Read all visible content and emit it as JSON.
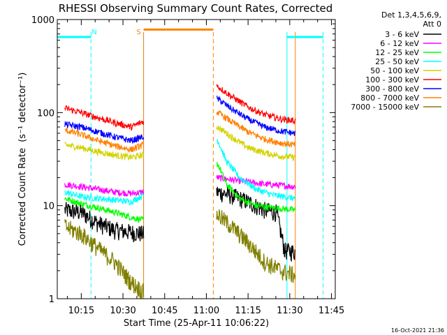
{
  "chart_data": {
    "type": "line",
    "title": "RHESSI Observing Summary Count Rates, Corrected",
    "xlabel": "Start Time (25-Apr-11 10:06:22)",
    "ylabel": "Corrected Count Rate",
    "ylabel_units": "(s⁻¹ detector⁻¹)",
    "xscale": "time",
    "yscale": "log",
    "x_range": [
      "10:06:22",
      "11:46:22"
    ],
    "ylim": [
      1,
      1000
    ],
    "x_ticks": [
      "10:15",
      "10:30",
      "10:45",
      "11:00",
      "11:15",
      "11:30",
      "11:45"
    ],
    "y_ticks": [
      {
        "value": 1,
        "label": "1"
      },
      {
        "value": 10,
        "label": "10"
      },
      {
        "value": 100,
        "label": "100"
      },
      {
        "value": 1000,
        "label": "1000"
      }
    ],
    "grid": false,
    "legend": {
      "position": "right",
      "header": [
        "Det 1,3,4,5,6,9,",
        "Att 0"
      ]
    },
    "timestamp": "16-Oct-2021 21:36",
    "segments": [
      {
        "start": "10:09:05",
        "end": "10:37:25"
      },
      {
        "start": "11:03:40",
        "end": "11:32:00"
      }
    ],
    "series": [
      {
        "name": "3 - 6 keV",
        "color": "#000000",
        "seg1": [
          [
            10.15,
            9.0
          ],
          [
            10.25,
            8.5
          ],
          [
            10.35,
            6.5
          ],
          [
            10.45,
            5.5
          ],
          [
            10.55,
            5.2
          ],
          [
            10.62,
            5.0
          ]
        ],
        "seg2": [
          [
            11.07,
            14.0
          ],
          [
            11.15,
            13.0
          ],
          [
            11.25,
            11.0
          ],
          [
            11.35,
            9.0
          ],
          [
            11.42,
            8.5
          ],
          [
            11.47,
            3.3
          ],
          [
            11.53,
            3.2
          ]
        ]
      },
      {
        "name": "6 - 12 keV",
        "color": "#ff00ff",
        "seg1": [
          [
            10.15,
            17.0
          ],
          [
            10.25,
            16.0
          ],
          [
            10.35,
            15.0
          ],
          [
            10.45,
            14.0
          ],
          [
            10.55,
            13.5
          ],
          [
            10.62,
            14.0
          ]
        ],
        "seg2": [
          [
            11.07,
            20.0
          ],
          [
            11.15,
            19.0
          ],
          [
            11.25,
            18.0
          ],
          [
            11.35,
            17.0
          ],
          [
            11.45,
            16.5
          ],
          [
            11.53,
            16.0
          ]
        ]
      },
      {
        "name": "12 - 25 keV",
        "color": "#00ff00",
        "seg1": [
          [
            10.15,
            12.0
          ],
          [
            10.25,
            10.5
          ],
          [
            10.35,
            9.5
          ],
          [
            10.45,
            8.5
          ],
          [
            10.55,
            7.5
          ],
          [
            10.62,
            7.0
          ]
        ],
        "seg2": [
          [
            11.07,
            28.0
          ],
          [
            11.12,
            17.0
          ],
          [
            11.2,
            12.0
          ],
          [
            11.3,
            10.0
          ],
          [
            11.4,
            9.5
          ],
          [
            11.53,
            9.0
          ]
        ]
      },
      {
        "name": "25 - 50 keV",
        "color": "#00ffff",
        "seg1": [
          [
            10.15,
            14.0
          ],
          [
            10.25,
            12.5
          ],
          [
            10.35,
            12.0
          ],
          [
            10.45,
            11.5
          ],
          [
            10.55,
            11.0
          ],
          [
            10.62,
            13.0
          ]
        ],
        "seg2": [
          [
            11.07,
            50.0
          ],
          [
            11.12,
            30.0
          ],
          [
            11.2,
            20.0
          ],
          [
            11.3,
            15.0
          ],
          [
            11.4,
            13.0
          ],
          [
            11.53,
            12.0
          ]
        ]
      },
      {
        "name": "50 - 100 keV",
        "color": "#d2d200",
        "seg1": [
          [
            10.15,
            45.0
          ],
          [
            10.25,
            42.0
          ],
          [
            10.35,
            38.0
          ],
          [
            10.45,
            35.0
          ],
          [
            10.55,
            33.0
          ],
          [
            10.62,
            35.0
          ]
        ],
        "seg2": [
          [
            11.07,
            70.0
          ],
          [
            11.15,
            55.0
          ],
          [
            11.25,
            42.0
          ],
          [
            11.35,
            37.0
          ],
          [
            11.45,
            34.0
          ],
          [
            11.53,
            33.0
          ]
        ]
      },
      {
        "name": "100 - 300 keV",
        "color": "#ff0000",
        "seg1": [
          [
            10.15,
            112.0
          ],
          [
            10.25,
            100.0
          ],
          [
            10.35,
            88.0
          ],
          [
            10.45,
            78.0
          ],
          [
            10.55,
            70.0
          ],
          [
            10.62,
            80.0
          ]
        ],
        "seg2": [
          [
            11.07,
            190.0
          ],
          [
            11.15,
            150.0
          ],
          [
            11.25,
            115.0
          ],
          [
            11.35,
            95.0
          ],
          [
            11.45,
            85.0
          ],
          [
            11.53,
            82.0
          ]
        ]
      },
      {
        "name": "300 - 800 keV",
        "color": "#0000ff",
        "seg1": [
          [
            10.15,
            75.0
          ],
          [
            10.25,
            70.0
          ],
          [
            10.35,
            62.0
          ],
          [
            10.45,
            55.0
          ],
          [
            10.55,
            50.0
          ],
          [
            10.62,
            55.0
          ]
        ],
        "seg2": [
          [
            11.07,
            140.0
          ],
          [
            11.15,
            110.0
          ],
          [
            11.25,
            85.0
          ],
          [
            11.35,
            70.0
          ],
          [
            11.45,
            63.0
          ],
          [
            11.53,
            60.0
          ]
        ]
      },
      {
        "name": "800 - 7000 keV",
        "color": "#ff8000",
        "seg1": [
          [
            10.15,
            65.0
          ],
          [
            10.25,
            58.0
          ],
          [
            10.35,
            50.0
          ],
          [
            10.45,
            44.0
          ],
          [
            10.55,
            40.0
          ],
          [
            10.62,
            45.0
          ]
        ],
        "seg2": [
          [
            11.07,
            100.0
          ],
          [
            11.15,
            80.0
          ],
          [
            11.25,
            62.0
          ],
          [
            11.35,
            52.0
          ],
          [
            11.45,
            47.0
          ],
          [
            11.53,
            45.0
          ]
        ]
      },
      {
        "name": "7000 - 15000 keV",
        "color": "#808000",
        "seg1": [
          [
            10.15,
            6.0
          ],
          [
            10.25,
            5.0
          ],
          [
            10.35,
            3.5
          ],
          [
            10.45,
            2.5
          ],
          [
            10.55,
            1.5
          ],
          [
            10.62,
            1.2
          ]
        ],
        "seg2": [
          [
            11.07,
            8.0
          ],
          [
            11.15,
            6.0
          ],
          [
            11.25,
            4.0
          ],
          [
            11.35,
            2.5
          ],
          [
            11.45,
            2.0
          ],
          [
            11.53,
            1.8
          ]
        ]
      }
    ],
    "annotations": [
      {
        "label": "N",
        "color": "#00ffff",
        "x": "10:19:40"
      },
      {
        "label": "S",
        "color": "#ff8000",
        "x": "10:35:40"
      }
    ],
    "flag_bars": [
      {
        "name": "night",
        "color": "#00ffff",
        "level": 650,
        "ranges": [
          [
            "10:06:22",
            "10:18:30"
          ],
          [
            "11:29:00",
            "11:42:00"
          ]
        ]
      },
      {
        "name": "saa",
        "color": "#ff8000",
        "level": 780,
        "ranges": [
          [
            "10:37:25",
            "11:02:30"
          ]
        ]
      }
    ],
    "flag_lines": [
      {
        "color": "#00ffff",
        "style": "dashed",
        "x": "10:18:30"
      },
      {
        "color": "#00ffff",
        "style": "solid",
        "x": "10:37:25"
      },
      {
        "color": "#ff8000",
        "style": "solid",
        "x": "10:37:25"
      },
      {
        "color": "#ff8000",
        "style": "dashed",
        "x": "11:02:30"
      },
      {
        "color": "#00ffff",
        "style": "solid",
        "x": "11:29:00"
      },
      {
        "color": "#ff8000",
        "style": "solid",
        "x": "11:32:00"
      },
      {
        "color": "#00ffff",
        "style": "dashed",
        "x": "11:42:00"
      }
    ]
  }
}
